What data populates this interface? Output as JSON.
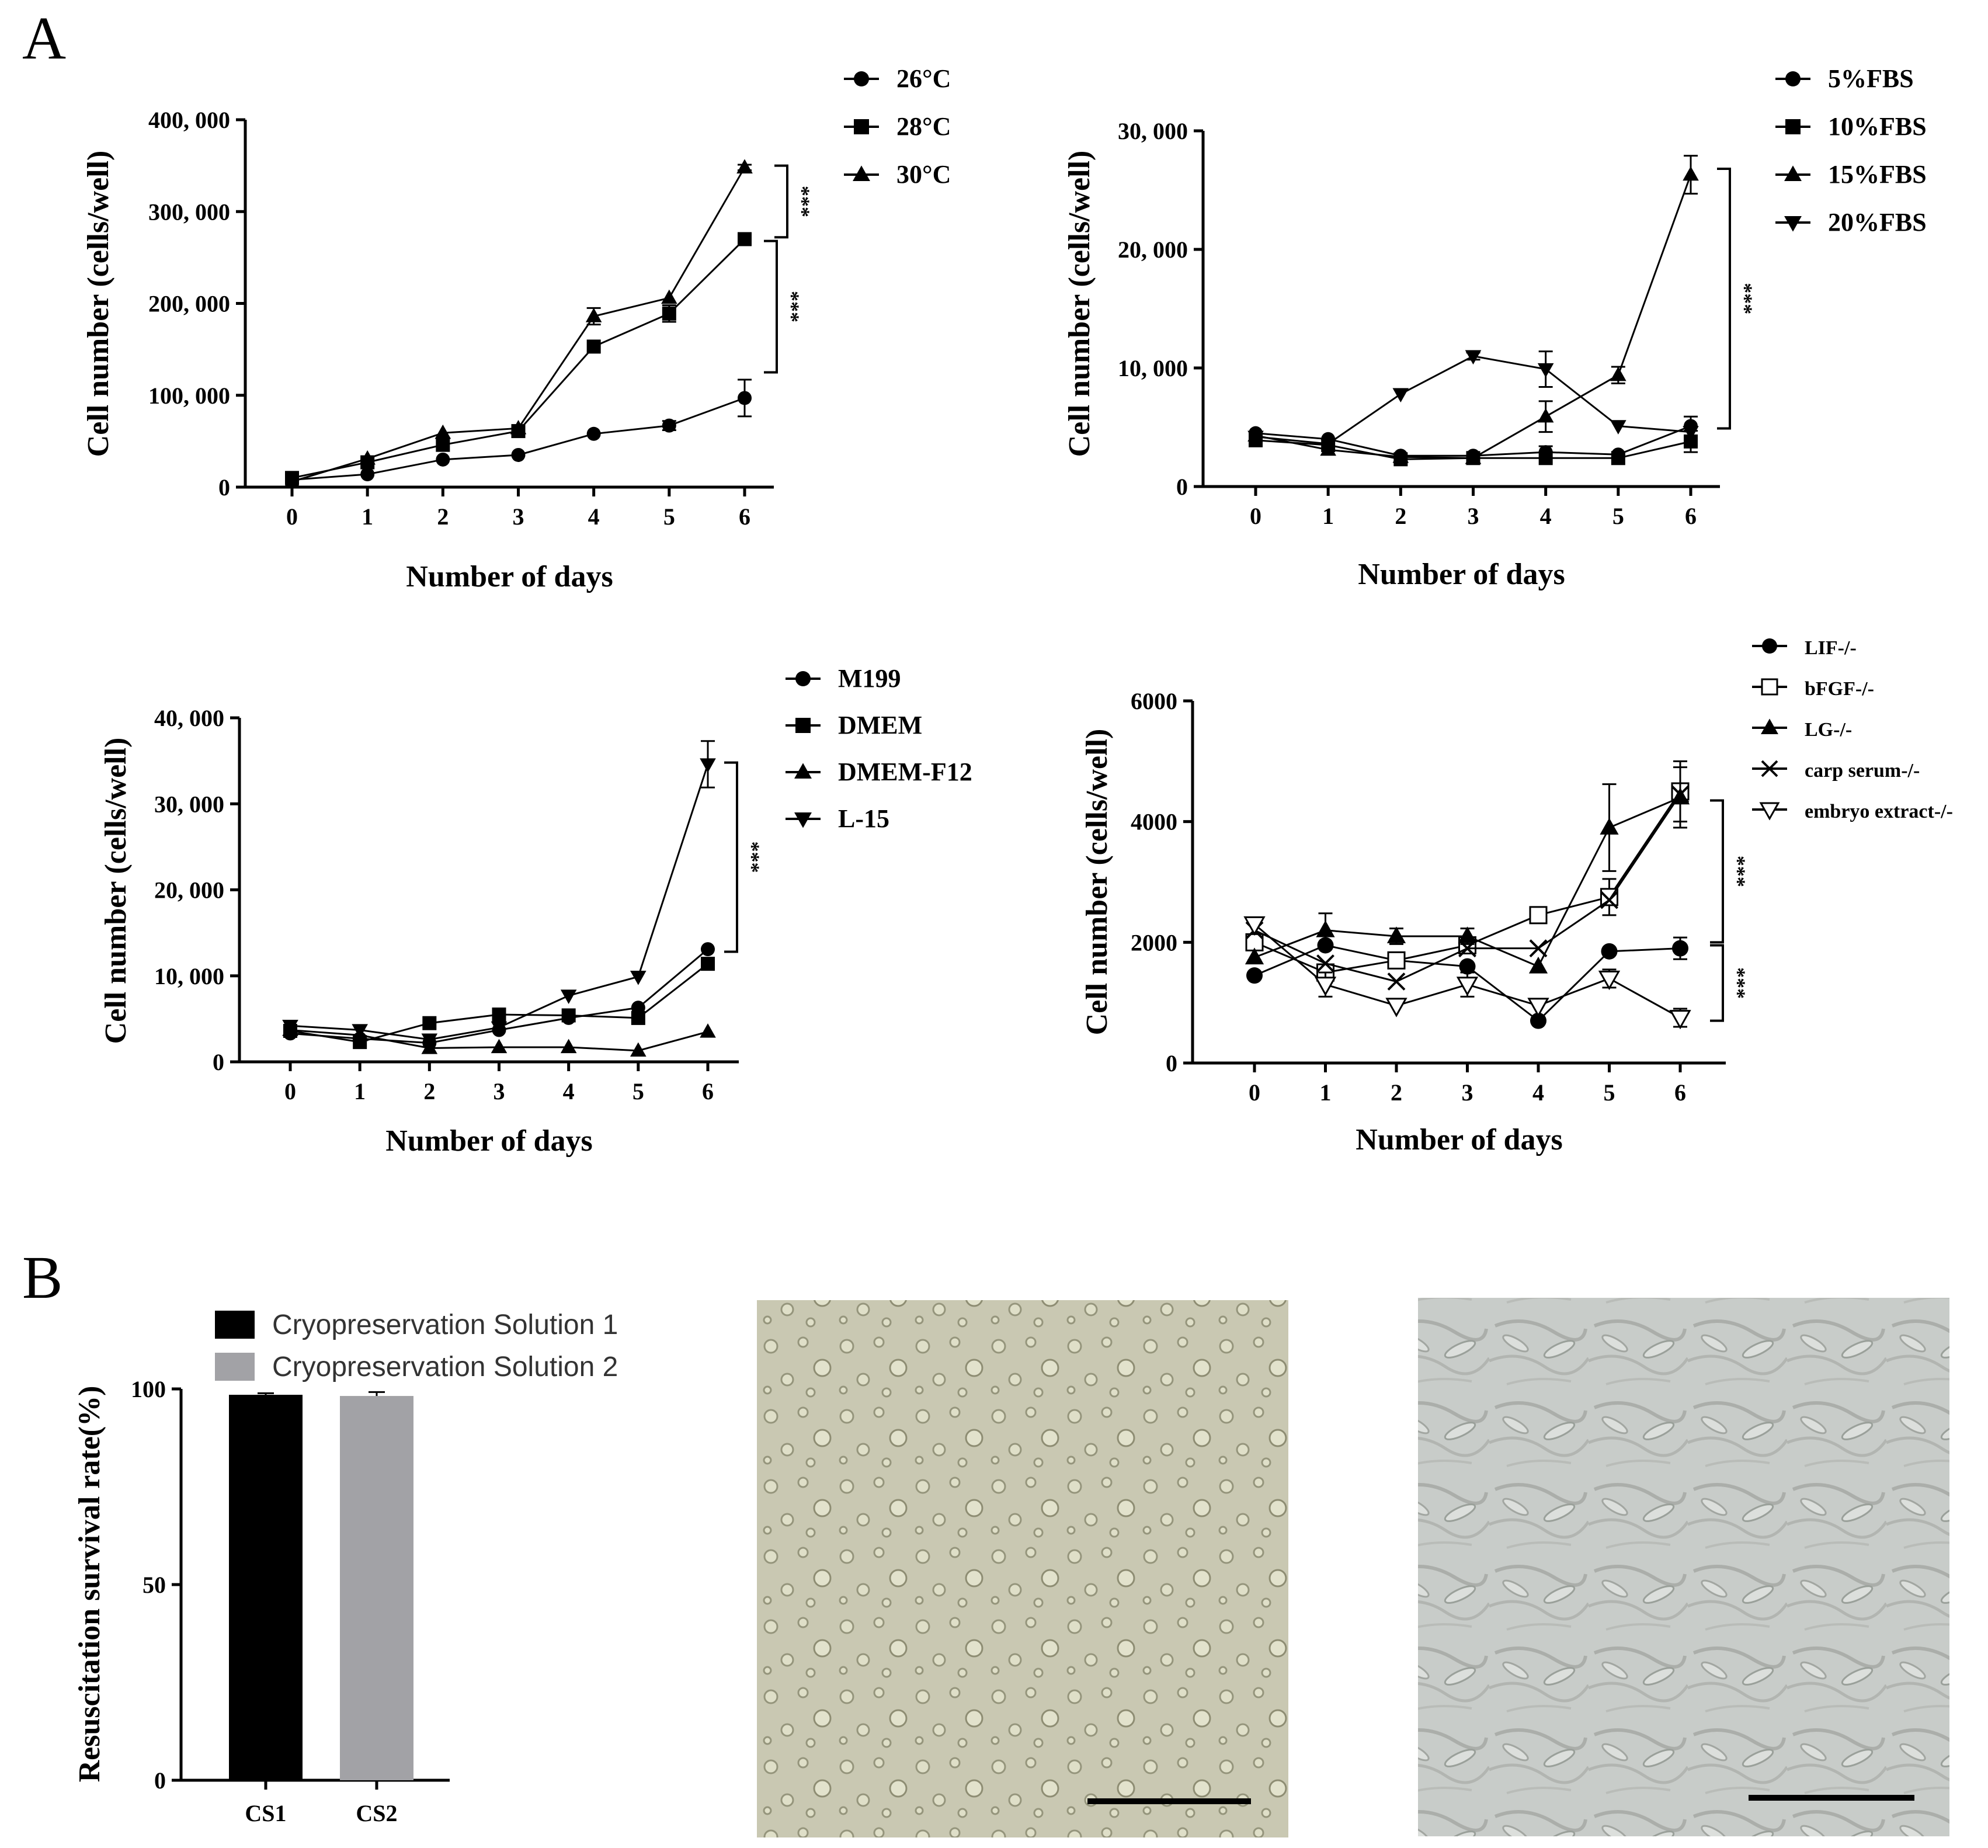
{
  "panel_labels": {
    "a": "A",
    "b": "B"
  },
  "micrographs": [
    {
      "name": "micrograph-1",
      "bg": "#c9c8b2"
    },
    {
      "name": "micrograph-2",
      "bg": "#c8ccc9"
    }
  ],
  "chart_data": [
    {
      "type": "line",
      "x": [
        0,
        1,
        2,
        3,
        4,
        5,
        6
      ],
      "xlabel": "Number of days",
      "ylabel": "Cell number (cells/well)",
      "ylim": [
        0,
        400000
      ],
      "yticks": [
        0,
        100000,
        200000,
        300000,
        400000
      ],
      "ytick_labels": [
        "0",
        "100, 000",
        "200, 000",
        "300, 000",
        "400, 000"
      ],
      "legend_position": "top-right",
      "series": [
        {
          "name": "26°C",
          "marker": "circle",
          "values": [
            8000,
            14000,
            30000,
            35000,
            58000,
            67000,
            97000
          ],
          "errors": [
            0,
            0,
            0,
            0,
            0,
            5000,
            20000
          ]
        },
        {
          "name": "28°C",
          "marker": "square",
          "values": [
            10000,
            27000,
            46000,
            61000,
            153000,
            189000,
            270000
          ],
          "errors": [
            0,
            0,
            0,
            0,
            0,
            9000,
            0
          ]
        },
        {
          "name": "30°C",
          "marker": "triangle",
          "values": [
            6000,
            31000,
            59000,
            64000,
            186000,
            206000,
            348000
          ],
          "errors": [
            0,
            0,
            0,
            0,
            9000,
            0,
            3000
          ]
        }
      ],
      "significance": [
        {
          "text": "***",
          "y_top": 350000,
          "y_bottom": 272000
        },
        {
          "text": "***",
          "y_top": 268000,
          "y_bottom": 125000
        }
      ]
    },
    {
      "type": "line",
      "x": [
        0,
        1,
        2,
        3,
        4,
        5,
        6
      ],
      "xlabel": "Number of days",
      "ylabel": "Cell number (cells/well)",
      "ylim": [
        0,
        30000
      ],
      "yticks": [
        0,
        10000,
        20000,
        30000
      ],
      "ytick_labels": [
        "0",
        "10, 000",
        "20, 000",
        "30, 000"
      ],
      "legend_position": "top-right",
      "series": [
        {
          "name": "5%FBS",
          "marker": "circle",
          "values": [
            4500,
            4000,
            2600,
            2600,
            2900,
            2700,
            5100
          ],
          "errors": [
            0,
            0,
            0,
            0,
            500,
            0,
            800
          ]
        },
        {
          "name": "10%FBS",
          "marker": "square",
          "values": [
            3900,
            3500,
            2300,
            2400,
            2400,
            2400,
            3800
          ],
          "errors": [
            0,
            0,
            0,
            0,
            0,
            0,
            900
          ]
        },
        {
          "name": "15%FBS",
          "marker": "triangle",
          "values": [
            4300,
            3100,
            2500,
            2400,
            5900,
            9400,
            26300
          ],
          "errors": [
            0,
            0,
            0,
            0,
            1300,
            700,
            1600
          ]
        },
        {
          "name": "20%FBS",
          "marker": "triangle-down",
          "values": [
            4200,
            3600,
            7800,
            11000,
            9900,
            5100,
            4600
          ],
          "errors": [
            0,
            0,
            0,
            300,
            1500,
            0,
            0
          ]
        }
      ],
      "significance": [
        {
          "text": "***",
          "y_top": 26800,
          "y_bottom": 4900
        }
      ]
    },
    {
      "type": "line",
      "x": [
        0,
        1,
        2,
        3,
        4,
        5,
        6
      ],
      "xlabel": "Number of days",
      "ylabel": "Cell number (cells/well)",
      "ylim": [
        0,
        40000
      ],
      "yticks": [
        0,
        10000,
        20000,
        30000,
        40000
      ],
      "ytick_labels": [
        "0",
        "10, 000",
        "20, 000",
        "30, 000",
        "40, 000"
      ],
      "legend_position": "top-right",
      "series": [
        {
          "name": "M199",
          "marker": "circle",
          "values": [
            3300,
            2700,
            2200,
            3700,
            5100,
            6300,
            13100
          ],
          "errors": [
            0,
            0,
            0,
            0,
            0,
            0,
            0
          ]
        },
        {
          "name": "DMEM",
          "marker": "square",
          "values": [
            3600,
            2300,
            4500,
            5500,
            5400,
            5100,
            11400
          ],
          "errors": [
            0,
            0,
            0,
            0,
            0,
            0,
            0
          ]
        },
        {
          "name": "DMEM-F12",
          "marker": "triangle",
          "values": [
            3700,
            3100,
            1600,
            1700,
            1700,
            1300,
            3500
          ],
          "errors": [
            0,
            0,
            0,
            0,
            0,
            0,
            0
          ]
        },
        {
          "name": "L-15",
          "marker": "triangle-down",
          "values": [
            4200,
            3700,
            2600,
            4000,
            7700,
            9900,
            34600
          ],
          "errors": [
            0,
            0,
            0,
            0,
            0,
            0,
            2700
          ]
        }
      ],
      "significance": [
        {
          "text": "***",
          "y_top": 34800,
          "y_bottom": 12800
        }
      ]
    },
    {
      "type": "line",
      "x": [
        0,
        1,
        2,
        3,
        4,
        5,
        6
      ],
      "xlabel": "Number of days",
      "ylabel": "Cell number (cells/well)",
      "ylim": [
        0,
        6000
      ],
      "yticks": [
        0,
        2000,
        4000,
        6000
      ],
      "ytick_labels": [
        "0",
        "2000",
        "4000",
        "6000"
      ],
      "legend_position": "top-right",
      "series": [
        {
          "name": "LIF-/-",
          "marker": "circle",
          "values": [
            1450,
            1950,
            1700,
            1600,
            700,
            1850,
            1900
          ],
          "errors": [
            0,
            0,
            0,
            0,
            0,
            0,
            180
          ]
        },
        {
          "name": "bFGF-/-",
          "marker": "square-open",
          "values": [
            2000,
            1500,
            1700,
            1950,
            2450,
            2750,
            4500
          ],
          "errors": [
            300,
            0,
            0,
            0,
            0,
            300,
            500
          ]
        },
        {
          "name": "LG-/-",
          "marker": "triangle",
          "values": [
            1750,
            2200,
            2100,
            2100,
            1600,
            3900,
            4400
          ],
          "errors": [
            0,
            280,
            130,
            130,
            0,
            720,
            500
          ]
        },
        {
          "name": "carp serum-/-",
          "marker": "x",
          "values": [
            2200,
            1650,
            1350,
            1900,
            1900,
            2700,
            4450
          ],
          "errors": [
            0,
            0,
            0,
            0,
            0,
            0,
            0
          ]
        },
        {
          "name": "embryo extract-/-",
          "marker": "triangle-down-open",
          "values": [
            2300,
            1300,
            950,
            1300,
            950,
            1400,
            750
          ],
          "errors": [
            0,
            200,
            0,
            200,
            0,
            150,
            150
          ]
        }
      ],
      "significance": [
        {
          "text": "***",
          "y_top": 4350,
          "y_bottom": 2000
        },
        {
          "text": "***",
          "y_top": 1950,
          "y_bottom": 700
        }
      ]
    },
    {
      "type": "bar",
      "categories": [
        "CS1",
        "CS2"
      ],
      "ylabel": "Resuscitation survival rate(%)",
      "ylim": [
        0,
        100
      ],
      "yticks": [
        0,
        50,
        100
      ],
      "ytick_labels": [
        "0",
        "50",
        "100"
      ],
      "legend_position": "top-left",
      "series": [
        {
          "name": "Cryopreservation Solution 1",
          "color": "#000000",
          "value": 98.5,
          "error": 0.4
        },
        {
          "name": "Cryopreservation Solution 2",
          "color": "#a2a2a6",
          "value": 98.2,
          "error": 1.0
        }
      ]
    }
  ]
}
